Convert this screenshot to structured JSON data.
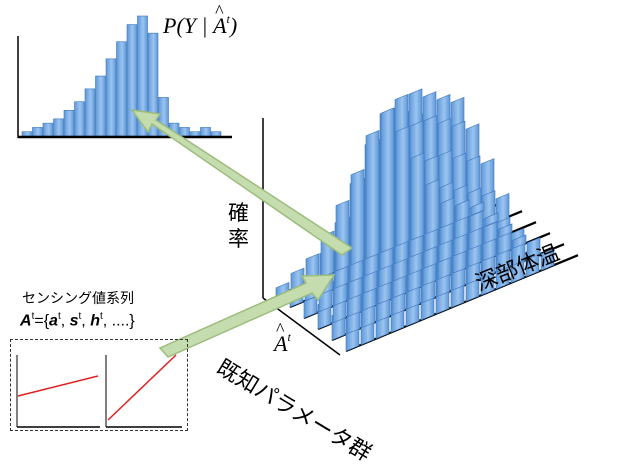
{
  "labels": {
    "probability": "確率",
    "depth_temperature": "深部体温",
    "known_parameter_group": "既知パラメータ群",
    "sensing_title": "センシング値系列",
    "sensing_sequence": {
      "symbol": "A",
      "sup": "t",
      "equals": "={",
      "items": [
        {
          "sym": "a",
          "sup": "t"
        },
        {
          "sym": "s",
          "sup": "t"
        },
        {
          "sym": "h",
          "sup": "t"
        }
      ],
      "tail": ", ....}"
    },
    "formula": {
      "prefix": "P(Y | ",
      "symbol": "A",
      "sup": "t",
      "suffix": ")"
    },
    "axis_param_symbol": {
      "symbol": "A",
      "sup": "t"
    }
  },
  "chart_data": [
    {
      "type": "bar",
      "title": "P(Y | Â^t)",
      "values": [
        1,
        2,
        3,
        4,
        6,
        8,
        11,
        14,
        18,
        22,
        26,
        28,
        24,
        9,
        3,
        2,
        1,
        2,
        1
      ]
    },
    {
      "type": "bar",
      "title": "",
      "ylabel": "確率",
      "series": [
        {
          "values": [
            1,
            2,
            3,
            5,
            8,
            11,
            15,
            17,
            14,
            10,
            6,
            3,
            2,
            1
          ]
        },
        {
          "values": [
            2,
            3,
            5,
            8,
            12,
            16,
            19,
            20,
            16,
            11,
            7,
            4,
            2,
            1
          ]
        },
        {
          "values": [
            2,
            4,
            7,
            10,
            14,
            18,
            21,
            22,
            18,
            13,
            8,
            5,
            2,
            1
          ]
        },
        {
          "values": [
            3,
            5,
            8,
            12,
            16,
            19,
            22,
            23,
            19,
            14,
            9,
            5,
            3,
            1
          ]
        },
        {
          "values": [
            3,
            6,
            9,
            13,
            17,
            20,
            23,
            24,
            20,
            15,
            10,
            6,
            3,
            2
          ]
        },
        {
          "values": [
            4,
            7,
            10,
            14,
            18,
            21,
            24,
            25,
            21,
            16,
            11,
            6,
            3,
            2
          ]
        }
      ]
    }
  ],
  "colors": {
    "bar_fill": "#7fb0e6",
    "bar_dark": "#4a86cc",
    "arrow": "#c5dcae",
    "arrow_stroke": "#9bbd7c",
    "red_line": "#e02020"
  }
}
